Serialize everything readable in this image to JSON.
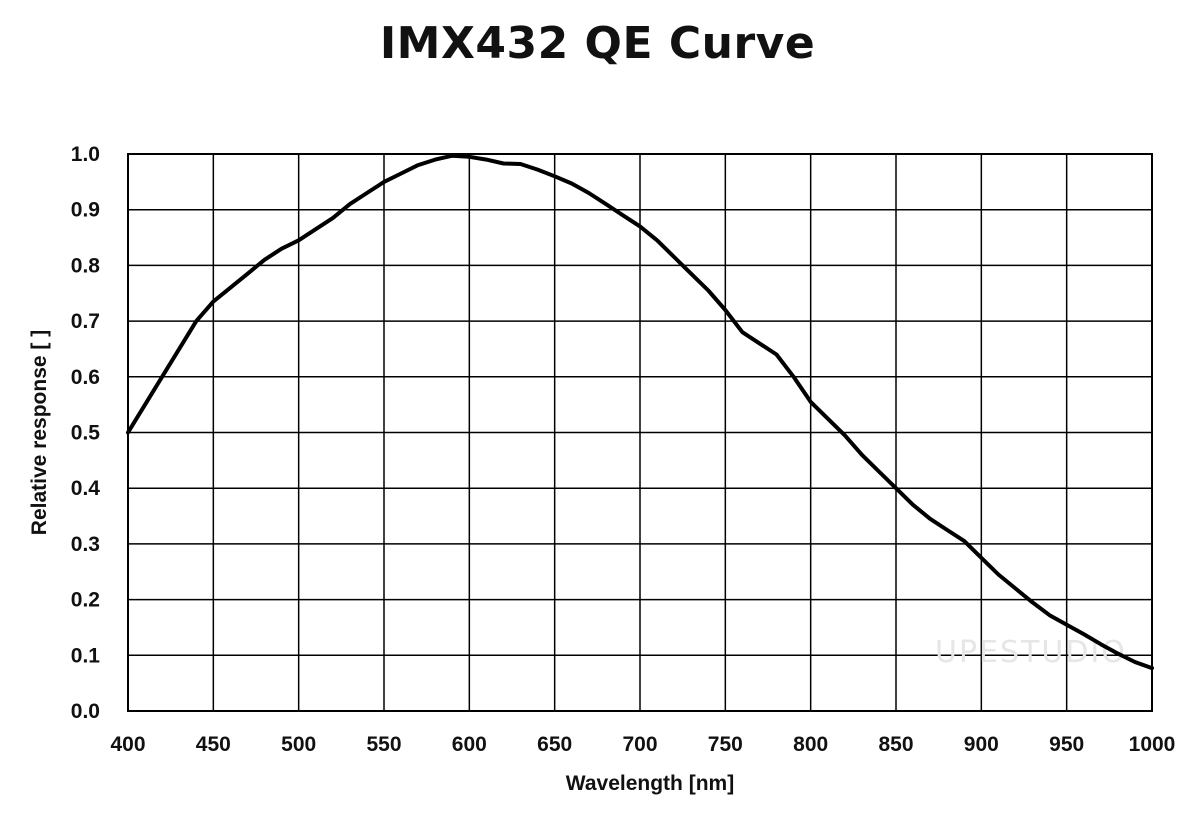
{
  "chart_data": {
    "type": "line",
    "title": "IMX432 QE Curve",
    "xlabel": "Wavelength [nm]",
    "ylabel": "Relative response [ ]",
    "xlim": [
      400,
      1000
    ],
    "ylim": [
      0.0,
      1.0
    ],
    "x_ticks": [
      "400",
      "450",
      "500",
      "550",
      "600",
      "650",
      "700",
      "750",
      "800",
      "850",
      "900",
      "950",
      "1000"
    ],
    "y_ticks": [
      "0.0",
      "0.1",
      "0.2",
      "0.3",
      "0.4",
      "0.5",
      "0.6",
      "0.7",
      "0.8",
      "0.9",
      "1.0"
    ],
    "grid": true,
    "series": [
      {
        "x": [
          400,
          410,
          420,
          430,
          440,
          450,
          460,
          470,
          480,
          490,
          500,
          510,
          520,
          530,
          540,
          550,
          560,
          570,
          580,
          590,
          600,
          610,
          620,
          630,
          640,
          650,
          660,
          670,
          680,
          690,
          700,
          710,
          720,
          730,
          740,
          750,
          760,
          770,
          780,
          790,
          800,
          810,
          820,
          830,
          840,
          850,
          860,
          870,
          880,
          890,
          900,
          910,
          920,
          930,
          940,
          950,
          960,
          970,
          980,
          990,
          1000
        ],
        "values": [
          0.5,
          0.55,
          0.6,
          0.65,
          0.7,
          0.735,
          0.76,
          0.785,
          0.81,
          0.83,
          0.845,
          0.865,
          0.885,
          0.91,
          0.93,
          0.95,
          0.965,
          0.98,
          0.99,
          0.997,
          0.995,
          0.99,
          0.983,
          0.982,
          0.972,
          0.96,
          0.947,
          0.93,
          0.91,
          0.89,
          0.87,
          0.845,
          0.815,
          0.785,
          0.755,
          0.72,
          0.68,
          0.66,
          0.64,
          0.6,
          0.555,
          0.525,
          0.495,
          0.46,
          0.43,
          0.4,
          0.37,
          0.345,
          0.325,
          0.305,
          0.275,
          0.245,
          0.22,
          0.195,
          0.172,
          0.155,
          0.138,
          0.12,
          0.103,
          0.088,
          0.077
        ]
      }
    ],
    "line_color": "#000000"
  },
  "watermark": {
    "text": "UPESTUDIO"
  }
}
